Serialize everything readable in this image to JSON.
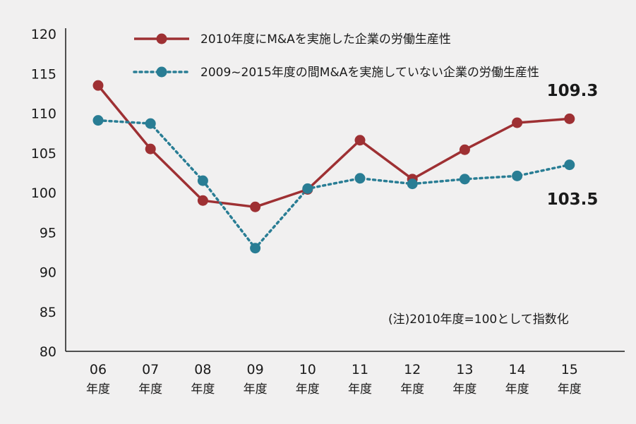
{
  "chart_data": {
    "type": "line",
    "categories": [
      {
        "top": "06",
        "bottom": "年度"
      },
      {
        "top": "07",
        "bottom": "年度"
      },
      {
        "top": "08",
        "bottom": "年度"
      },
      {
        "top": "09",
        "bottom": "年度"
      },
      {
        "top": "10",
        "bottom": "年度"
      },
      {
        "top": "11",
        "bottom": "年度"
      },
      {
        "top": "12",
        "bottom": "年度"
      },
      {
        "top": "13",
        "bottom": "年度"
      },
      {
        "top": "14",
        "bottom": "年度"
      },
      {
        "top": "15",
        "bottom": "年度"
      }
    ],
    "ylim": [
      80,
      120
    ],
    "yticks": [
      80,
      85,
      90,
      95,
      100,
      105,
      110,
      115,
      120
    ],
    "series": [
      {
        "name": "2010年度にM&Aを実施した企業の労働生産性",
        "style": "solid",
        "color": "#9e3033",
        "values": [
          113.5,
          105.5,
          99.0,
          98.2,
          100.4,
          106.6,
          101.7,
          105.4,
          108.8,
          109.3
        ],
        "end_label": "109.3"
      },
      {
        "name": "2009~2015年度の間M&Aを実施していない企業の労働生産性",
        "style": "dotted",
        "color": "#297d94",
        "values": [
          109.1,
          108.7,
          101.5,
          93.0,
          100.5,
          101.8,
          101.1,
          101.7,
          102.1,
          103.5
        ],
        "end_label": "103.5"
      }
    ],
    "note": "(注)2010年度=100として指数化",
    "legend_position": "top"
  }
}
